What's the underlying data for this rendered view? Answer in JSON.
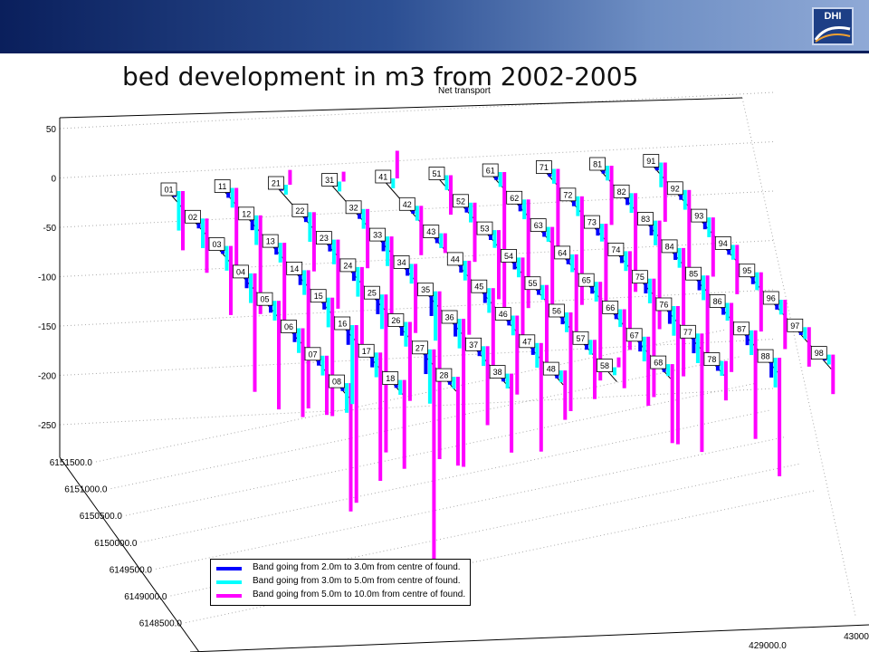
{
  "title": "bed development in m3 from 2002-2005",
  "logo_text": "DHI",
  "colors": {
    "banner_dark": "#0a1f5c",
    "banner_light": "#8fa9d6",
    "s1": "#0000ff",
    "s2": "#00ffff",
    "s3": "#ff00ff"
  },
  "chart_data": {
    "type": "bar",
    "subtitle": "Net transport",
    "z_ticks": [
      "50",
      "0",
      "-50",
      "-100",
      "-150",
      "-200",
      "-250"
    ],
    "z_values": [
      50,
      0,
      -50,
      -100,
      -150,
      -200,
      -250
    ],
    "y_ticks": [
      "6151500.0",
      "6151000.0",
      "6150500.0",
      "6150000.0",
      "6149500.0",
      "6149000.0",
      "6148500.0"
    ],
    "x_ticks": [
      "429000.0",
      "43000"
    ],
    "series": [
      {
        "name": "Band going from 2.0m to 3.0m from centre of found.",
        "color": "#0000ff"
      },
      {
        "name": "Band going from 3.0m to 5.0m from centre of found.",
        "color": "#00ffff"
      },
      {
        "name": "Band going from 5.0m to 10.0m from centre of found.",
        "color": "#ff00ff"
      }
    ],
    "rows": [
      {
        "labels": [
          "01",
          "02",
          "03",
          "04",
          "05",
          "06",
          "07",
          "08"
        ],
        "values": [
          [
            -6,
            -40,
            -60
          ],
          [
            -10,
            -30,
            -55
          ],
          [
            -8,
            -25,
            -70
          ],
          [
            -15,
            -30,
            -120
          ],
          [
            -12,
            -20,
            -110
          ],
          [
            -14,
            -25,
            -90
          ],
          [
            -10,
            -20,
            -60
          ],
          [
            -8,
            -30,
            -130
          ]
        ]
      },
      {
        "labels": [
          "11",
          "12",
          "13",
          "14",
          "15",
          "16",
          "17",
          "18"
        ],
        "values": [
          [
            -10,
            -20,
            -80
          ],
          [
            -15,
            -30,
            -100
          ],
          [
            -12,
            -20,
            -90
          ],
          [
            -15,
            -25,
            -140
          ],
          [
            -12,
            -30,
            -120
          ],
          [
            -20,
            -80,
            -180
          ],
          [
            -15,
            -25,
            -130
          ],
          [
            -8,
            -15,
            -90
          ]
        ]
      },
      {
        "labels": [
          "21",
          "22",
          "23",
          "24",
          "25",
          "26",
          "27",
          "28"
        ],
        "values": [
          [
            -6,
            -10,
            15
          ],
          [
            -10,
            -30,
            -60
          ],
          [
            -12,
            -25,
            -70
          ],
          [
            -14,
            -30,
            -80
          ],
          [
            -20,
            -35,
            -160
          ],
          [
            -14,
            -25,
            -80
          ],
          [
            -25,
            -55,
            -220
          ],
          [
            -8,
            -12,
            -90
          ]
        ]
      },
      {
        "labels": [
          "31",
          "32",
          "33",
          "34",
          "35",
          "36",
          "37",
          "38"
        ],
        "values": [
          [
            -5,
            -10,
            10
          ],
          [
            -10,
            -20,
            -60
          ],
          [
            -15,
            -30,
            -80
          ],
          [
            -12,
            -20,
            -70
          ],
          [
            -25,
            -50,
            -170
          ],
          [
            -18,
            -30,
            -150
          ],
          [
            -10,
            -20,
            -80
          ],
          [
            -8,
            -15,
            -80
          ]
        ]
      },
      {
        "labels": [
          "41",
          "42",
          "43",
          "44",
          "45",
          "46",
          "47",
          "48"
        ],
        "values": [
          [
            -5,
            -10,
            28
          ],
          [
            -8,
            -15,
            -50
          ],
          [
            -10,
            -15,
            -20
          ],
          [
            -12,
            -20,
            -75
          ],
          [
            -15,
            -25,
            -90
          ],
          [
            -10,
            -20,
            -80
          ],
          [
            -12,
            -25,
            -110
          ],
          [
            -8,
            -12,
            -50
          ]
        ]
      },
      {
        "labels": [
          "51",
          "52",
          "53",
          "54",
          "55",
          "56",
          "57",
          "58"
        ],
        "values": [
          [
            -5,
            -15,
            -40
          ],
          [
            -10,
            -20,
            -60
          ],
          [
            -10,
            -18,
            -70
          ],
          [
            -12,
            -20,
            -90
          ],
          [
            -10,
            -15,
            -80
          ],
          [
            -12,
            -20,
            -100
          ],
          [
            -10,
            -15,
            -60
          ],
          [
            -5,
            -8,
            10
          ]
        ]
      },
      {
        "labels": [
          "61",
          "62",
          "63",
          "64",
          "65",
          "66",
          "67",
          "68"
        ],
        "values": [
          [
            -8,
            -15,
            -140
          ],
          [
            -12,
            -20,
            -110
          ],
          [
            -10,
            -15,
            -80
          ],
          [
            -10,
            -18,
            -90
          ],
          [
            -12,
            -20,
            -100
          ],
          [
            -10,
            -18,
            -80
          ],
          [
            -15,
            -25,
            -70
          ],
          [
            -8,
            -12,
            -80
          ]
        ]
      },
      {
        "labels": [
          "71",
          "72",
          "73",
          "74",
          "75",
          "76",
          "77",
          "78"
        ],
        "values": [
          [
            -8,
            -15,
            -80
          ],
          [
            -10,
            -20,
            -110
          ],
          [
            -12,
            -18,
            -80
          ],
          [
            -12,
            -20,
            -100
          ],
          [
            -15,
            -25,
            -120
          ],
          [
            -18,
            -30,
            -140
          ],
          [
            -20,
            -30,
            -120
          ],
          [
            -10,
            -15,
            -40
          ]
        ]
      },
      {
        "labels": [
          "81",
          "82",
          "83",
          "84",
          "85",
          "86",
          "87",
          "88"
        ],
        "values": [
          [
            -8,
            -15,
            -60
          ],
          [
            -12,
            -20,
            -100
          ],
          [
            -15,
            -25,
            -110
          ],
          [
            -12,
            -20,
            -130
          ],
          [
            -15,
            -25,
            -90
          ],
          [
            -12,
            -18,
            -70
          ],
          [
            -15,
            -25,
            -110
          ],
          [
            -20,
            -30,
            -120
          ]
        ]
      },
      {
        "labels": [
          "91",
          "92",
          "93",
          "94",
          "95",
          "96",
          "97",
          "98"
        ],
        "values": [
          [
            -8,
            -25,
            -60
          ],
          [
            -10,
            -20,
            -80
          ],
          [
            -12,
            -20,
            -60
          ],
          [
            -10,
            -15,
            -50
          ],
          [
            -12,
            -18,
            -60
          ],
          [
            -10,
            -15,
            -50
          ],
          [
            -8,
            -12,
            -40
          ],
          [
            -6,
            -10,
            -40
          ]
        ]
      }
    ]
  }
}
